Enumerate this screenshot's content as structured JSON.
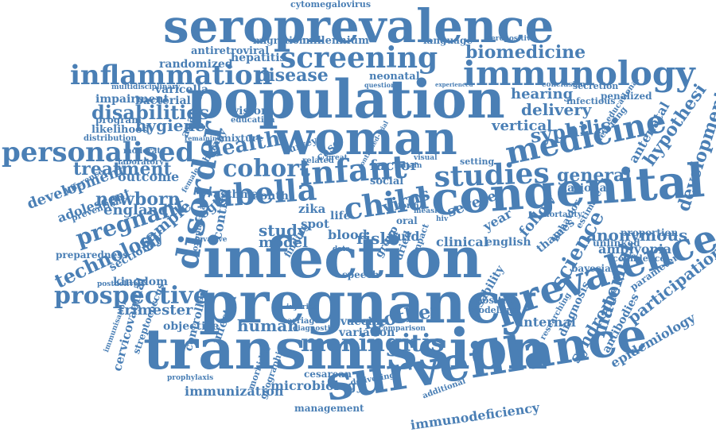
{
  "cloud": {
    "color": "#4a7fb5",
    "background": "#ffffff",
    "words": [
      "seroprevalence",
      "cytomegalovirus",
      "population",
      "woman",
      "infection",
      "pregnancy",
      "transmission",
      "surveillance",
      "congenital",
      "prevalence",
      "immunology",
      "screening",
      "inflammation",
      "disease",
      "biomedicine",
      "medicine",
      "infant",
      "studies",
      "child",
      "rubella",
      "disorder",
      "personalised",
      "cohort",
      "meningitis",
      "prospective",
      "pregnant",
      "technology",
      "trimester",
      "kingdom",
      "newborn",
      "treatment",
      "disabilities",
      "hygiene",
      "health",
      "syphilis",
      "immunodeficiency",
      "anonymous",
      "hypothesi",
      "developmental",
      "science",
      "participation",
      "maternal",
      "epidemiology",
      "syndrome",
      "antibodies",
      "hepatitis",
      "randomized",
      "antiretroviral",
      "millennium",
      "migration",
      "neonatal",
      "language",
      "seropositive",
      "delivery",
      "vertical",
      "hearing",
      "infectious",
      "secretion",
      "penalized",
      "educational",
      "learning",
      "virus",
      "factor",
      "severe",
      "general",
      "national",
      "antenatal",
      "amblyopia",
      "proportion",
      "confidence",
      "unlinked",
      "thames",
      "behavior",
      "estimate",
      "bayesian",
      "parameter",
      "positive",
      "modelling",
      "disability",
      "internal",
      "diagnosis",
      "researching",
      "mother",
      "human",
      "vaccine",
      "variation",
      "cesarean",
      "microbiology",
      "management",
      "geographic",
      "morbidity",
      "controlled",
      "immunization",
      "infected",
      "objective",
      "streptococcus",
      "cervicovaginal",
      "immunisation",
      "prophylaxis",
      "injuries",
      "carriage",
      "study",
      "model",
      "blood",
      "risk",
      "fluid",
      "clinical",
      "english",
      "follow",
      "year",
      "zika",
      "spot",
      "oral",
      "life",
      "term",
      "measle",
      "case",
      "survey",
      "social",
      "great",
      "britain",
      "related",
      "setting",
      "visual",
      "mixture",
      "education",
      "vision",
      "analysis",
      "asthma",
      "month",
      "female",
      "therapy",
      "outcome",
      "laboratory",
      "moderate",
      "distribution",
      "likelihood",
      "program",
      "impairment",
      "bacterial",
      "varicella",
      "multidisciplinary",
      "england",
      "adolescent",
      "prevention",
      "development",
      "difference",
      "preparedness",
      "sectional",
      "sample",
      "toxoplasma",
      "control",
      "cogtis",
      "postdelivery",
      "speech",
      "group",
      "dried",
      "impact",
      "additional",
      "delivering",
      "question",
      "controlled-trial",
      "data",
      "finding",
      "invasive",
      "diagnostic",
      "comparison",
      "hiv",
      "conclusion",
      "experienced",
      "remaining",
      "mortality"
    ]
  }
}
